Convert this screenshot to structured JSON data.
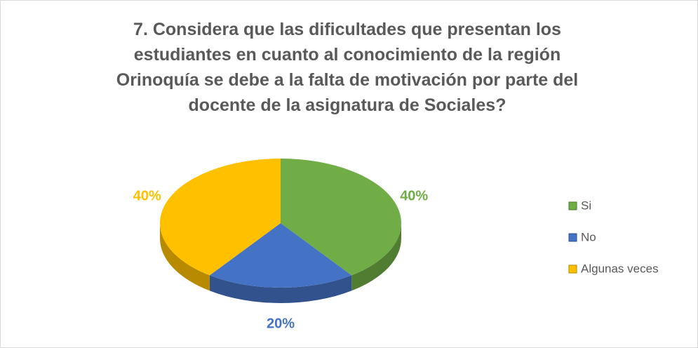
{
  "chart_data": {
    "type": "pie",
    "title": "7. Considera que las dificultades que presentan los estudiantes en cuanto al conocimiento de la región Orinoquía se debe a la falta de motivación por parte del docente de la asignatura de Sociales?",
    "categories": [
      "Si",
      "No",
      "Algunas veces"
    ],
    "values": [
      40,
      20,
      40
    ],
    "value_labels": [
      "40%",
      "20%",
      "40%"
    ],
    "colors": [
      "#70ad47",
      "#4472c4",
      "#ffc000"
    ],
    "legend": "right"
  }
}
